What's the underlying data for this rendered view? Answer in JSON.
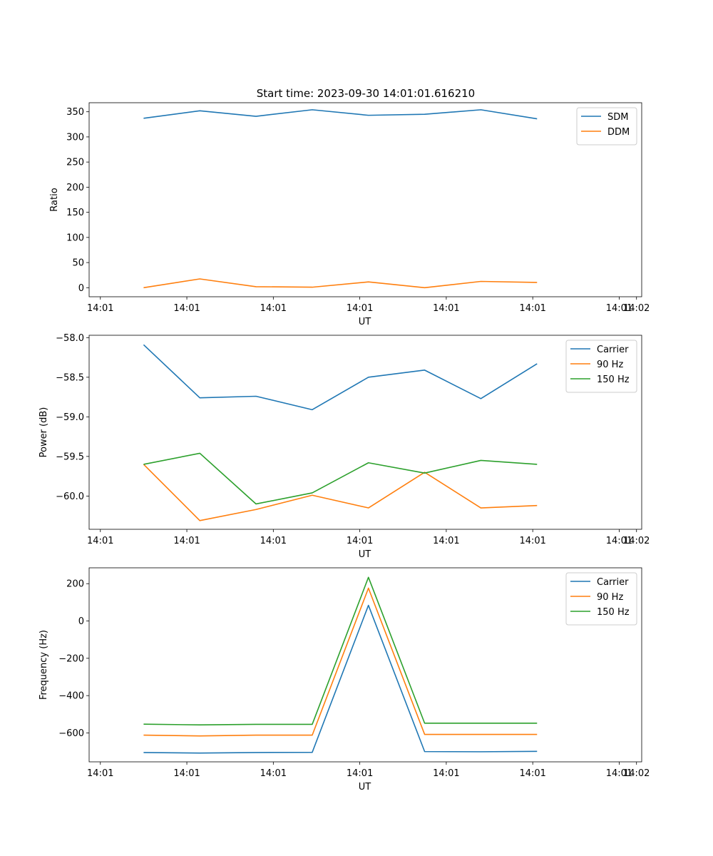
{
  "figure_title": "Start time: 2023-09-30 14:01:01.616210",
  "chart_data": [
    {
      "type": "line",
      "title": "Start time: 2023-09-30 14:01:01.616210",
      "xlabel": "UT",
      "ylabel": "Ratio",
      "x_tick_labels": [
        "14:01",
        "14:01",
        "14:01",
        "14:01",
        "14:01",
        "14:01",
        "14:01"
      ],
      "x_tick_values": [
        0,
        1,
        2,
        3,
        4,
        5,
        6
      ],
      "x_end_tick_label": "14:02",
      "x_end_tick_value": 6.2,
      "xlim": [
        -0.13,
        6.26
      ],
      "x": [
        0.5,
        1.15,
        1.8,
        2.45,
        3.1,
        3.75,
        4.4,
        5.05
      ],
      "ylim": [
        -18,
        368
      ],
      "yticks": [
        0,
        50,
        100,
        150,
        200,
        250,
        300,
        350
      ],
      "legend_location": "top-right",
      "series": [
        {
          "name": "SDM",
          "color": "#1f77b4",
          "values": [
            337,
            352,
            341,
            354,
            343,
            345,
            354,
            336
          ]
        },
        {
          "name": "DDM",
          "color": "#ff7f0e",
          "values": [
            0,
            17.5,
            2,
            1,
            11.5,
            0,
            12.5,
            10.5
          ]
        }
      ]
    },
    {
      "type": "line",
      "xlabel": "UT",
      "ylabel": "Power (dB)",
      "x_tick_labels": [
        "14:01",
        "14:01",
        "14:01",
        "14:01",
        "14:01",
        "14:01",
        "14:01"
      ],
      "x_tick_values": [
        0,
        1,
        2,
        3,
        4,
        5,
        6
      ],
      "x_end_tick_label": "14:02",
      "x_end_tick_value": 6.2,
      "xlim": [
        -0.13,
        6.26
      ],
      "x": [
        0.5,
        1.15,
        1.8,
        2.45,
        3.1,
        3.75,
        4.4,
        5.05
      ],
      "ylim": [
        -60.42,
        -57.97
      ],
      "yticks": [
        -60.0,
        -59.5,
        -59.0,
        -58.5,
        -58.0
      ],
      "ytick_labels": [
        "−60.0",
        "−59.5",
        "−59.0",
        "−58.5",
        "−58.0"
      ],
      "legend_location": "top-right",
      "series": [
        {
          "name": "Carrier",
          "color": "#1f77b4",
          "values": [
            -58.09,
            -58.76,
            -58.74,
            -58.91,
            -58.5,
            -58.41,
            -58.77,
            -58.33
          ]
        },
        {
          "name": "90 Hz",
          "color": "#ff7f0e",
          "values": [
            -59.6,
            -60.31,
            -60.17,
            -59.99,
            -60.15,
            -59.7,
            -60.15,
            -60.12
          ]
        },
        {
          "name": "150 Hz",
          "color": "#2ca02c",
          "values": [
            -59.6,
            -59.46,
            -60.1,
            -59.96,
            -59.58,
            -59.71,
            -59.55,
            -59.6
          ]
        }
      ]
    },
    {
      "type": "line",
      "xlabel": "UT",
      "ylabel": "Frequency (Hz)",
      "x_tick_labels": [
        "14:01",
        "14:01",
        "14:01",
        "14:01",
        "14:01",
        "14:01",
        "14:01"
      ],
      "x_tick_values": [
        0,
        1,
        2,
        3,
        4,
        5,
        6
      ],
      "x_end_tick_label": "14:02",
      "x_end_tick_value": 6.2,
      "xlim": [
        -0.13,
        6.26
      ],
      "x": [
        0.5,
        1.15,
        1.8,
        2.45,
        3.1,
        3.75,
        4.4,
        5.05
      ],
      "ylim": [
        -755,
        285
      ],
      "yticks": [
        -600,
        -400,
        -200,
        0,
        200
      ],
      "ytick_labels": [
        "−600",
        "−400",
        "−200",
        "0",
        "200"
      ],
      "legend_location": "top-right",
      "series": [
        {
          "name": "Carrier",
          "color": "#1f77b4",
          "values": [
            -705,
            -708,
            -705,
            -704,
            84,
            -700,
            -701,
            -699
          ]
        },
        {
          "name": "90 Hz",
          "color": "#ff7f0e",
          "values": [
            -612,
            -616,
            -612,
            -612,
            176,
            -608,
            -608,
            -608
          ]
        },
        {
          "name": "150 Hz",
          "color": "#2ca02c",
          "values": [
            -553,
            -557,
            -554,
            -554,
            234,
            -548,
            -548,
            -548
          ]
        }
      ]
    }
  ]
}
